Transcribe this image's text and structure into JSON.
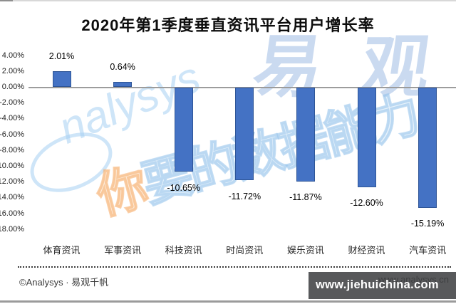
{
  "chart_data": {
    "type": "bar",
    "title": "2020年第1季度垂直资讯平台用户增长率",
    "categories": [
      "体育资讯",
      "军事资讯",
      "科技资讯",
      "时尚资讯",
      "娱乐资讯",
      "财经资讯",
      "汽车资讯"
    ],
    "values": [
      2.01,
      0.64,
      -10.65,
      -11.72,
      -11.87,
      -12.6,
      -15.19
    ],
    "data_labels": [
      "2.01%",
      "0.64%",
      "-10.65%",
      "-11.72%",
      "-11.87%",
      "-12.60%",
      "-15.19%"
    ],
    "yticks": [
      "4.00%",
      "2.00%",
      "0.00%",
      "-2.00%",
      "-4.00%",
      "-6.00%",
      "-8.00%",
      "-10.00%",
      "-12.00%",
      "-14.00%",
      "-16.00%",
      "-18.00%"
    ],
    "ylim": [
      -18,
      4
    ],
    "ytick_step": 2,
    "xlabel": "",
    "ylabel": "",
    "grid": false,
    "legend_position": "none",
    "bar_color": "#4472C4",
    "bar_border_color": "#2E5597",
    "axis_line_color": "#9C9C9C"
  },
  "watermarks": {
    "logo_cn": "易 观",
    "logo_script": "nalysys",
    "slogan_chars": [
      "你",
      "要",
      "的",
      "数",
      "据",
      "能",
      "力"
    ],
    "slogan_accent_color": "#F5B183",
    "slogan_color": "#A8CCEA",
    "url_behind": "www.analysys.cn",
    "overlay": {
      "text": "www.jiehuichina.com",
      "bg_color": "#58595B",
      "text_color": "#FFFFFF"
    }
  },
  "footer": {
    "copyright": "©Analysys · 易观千帆"
  }
}
